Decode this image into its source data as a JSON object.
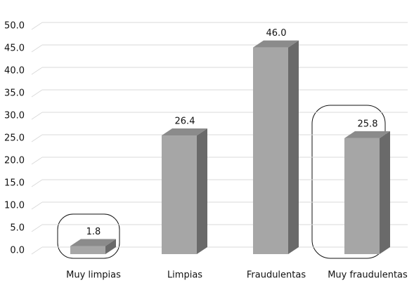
{
  "chart_data": {
    "type": "bar3d",
    "categories": [
      "Muy limpias",
      "Limpias",
      "Fraudulentas",
      "Muy fraudulentas"
    ],
    "values": [
      1.8,
      26.4,
      46.0,
      25.8
    ],
    "value_labels": [
      "1.8",
      "26.4",
      "46.0",
      "25.8"
    ],
    "color": "#a6a6a6",
    "ylim": [
      0,
      50
    ],
    "yticks": [
      {
        "value": 0,
        "label": "0.0"
      },
      {
        "value": 5,
        "label": "5.0"
      },
      {
        "value": 10,
        "label": "10.0"
      },
      {
        "value": 15,
        "label": "15.0"
      },
      {
        "value": 20,
        "label": "20.0"
      },
      {
        "value": 25,
        "label": "25.0"
      },
      {
        "value": 30,
        "label": "30.0"
      },
      {
        "value": 35,
        "label": "35.0"
      },
      {
        "value": 40,
        "label": "40.0"
      },
      {
        "value": 45,
        "label": "45.0"
      },
      {
        "value": 50,
        "label": "50.0"
      }
    ],
    "grid": true
  }
}
